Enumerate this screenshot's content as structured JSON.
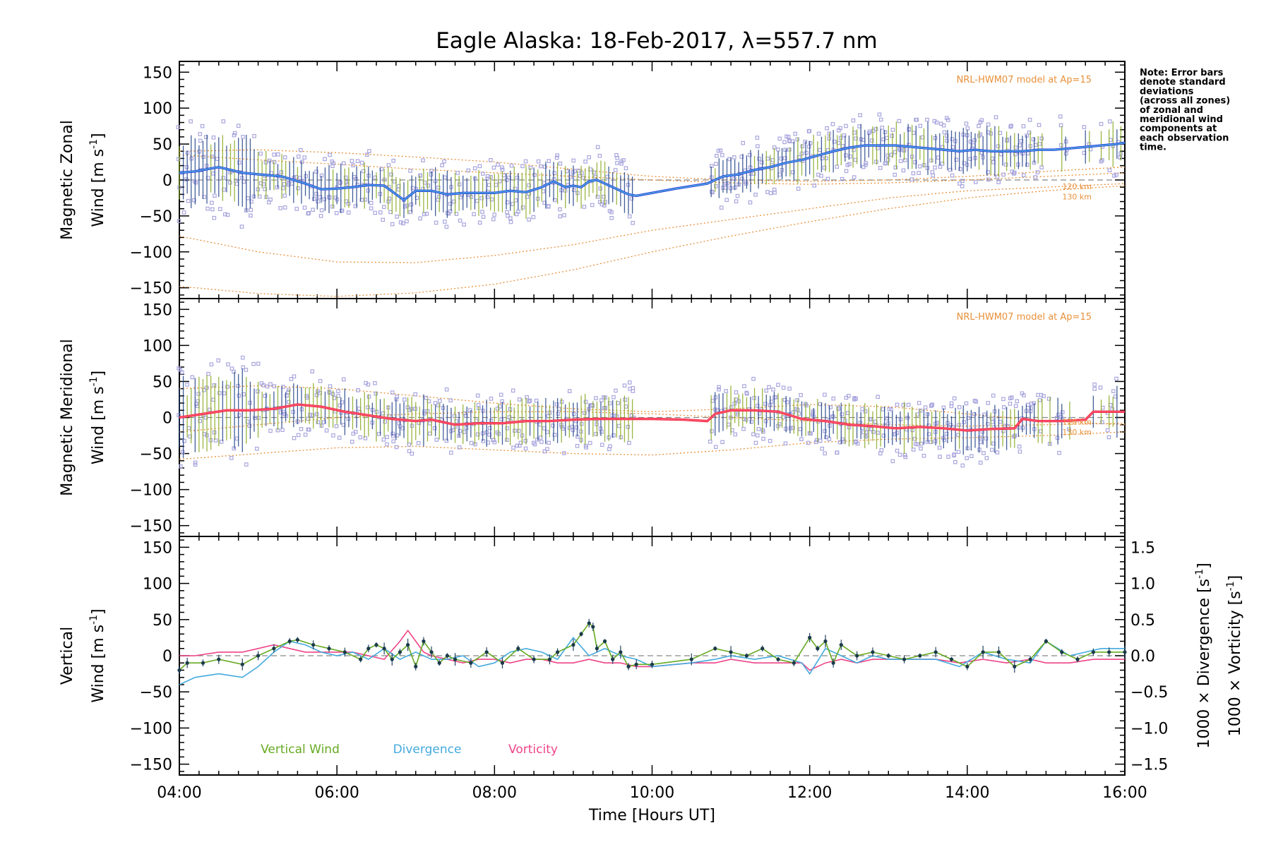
{
  "title": "Eagle Alaska: 18-Feb-2017, λ=557.7 nm",
  "note": [
    "Note: Error bars",
    "denote standard",
    "deviations",
    "(across all zones)",
    "of zonal and",
    "meridional wind",
    "components at",
    "each observation",
    "time."
  ],
  "x_axis": {
    "label": "Time [Hours UT]",
    "range": [
      4,
      16
    ],
    "tick_labels": [
      "04:00",
      "06:00",
      "08:00",
      "10:00",
      "12:00",
      "14:00",
      "16:00"
    ]
  },
  "colors": {
    "zonal": "#2233dd",
    "zonal_light": "#4fa6dd",
    "meridional": "#ee2233",
    "meridional_light": "#ff5577",
    "model": "#e8903a",
    "scatter": "#a9a6de",
    "vertical": "#66aa22",
    "divergence": "#44aadd",
    "vorticity": "#ee4488",
    "errorbar_a": "#224488",
    "errorbar_b": "#88aa22"
  },
  "chart_data": [
    {
      "type": "line",
      "panel": "zonal",
      "ylabel_line1": "Magnetic Zonal",
      "ylabel_line2": "Wind [m s",
      "ylabel_sup": "-1",
      "ylabel_close": "]",
      "ylim": [
        -165,
        165
      ],
      "y_tick_labels": [
        "150",
        "100",
        "50",
        "0",
        "−50",
        "−100",
        "−150"
      ],
      "model_label": "NRL-HWM07 model at Ap=15",
      "model_km_labels": [
        "120 km",
        "130 km"
      ],
      "series": [
        {
          "x": [
            4.0,
            4.2,
            4.5,
            4.8,
            5.0,
            5.3,
            5.6,
            5.8,
            6.0,
            6.2,
            6.4,
            6.6,
            6.75,
            6.85,
            7.0,
            7.2,
            7.4,
            7.6,
            7.8,
            8.0,
            8.2,
            8.4,
            8.6,
            8.75,
            8.9,
            9.0,
            9.1,
            9.2,
            9.3,
            9.4,
            9.5,
            9.6,
            9.7,
            9.8,
            10.0,
            10.3,
            10.7,
            10.9,
            11.1,
            11.3,
            11.5,
            11.7,
            11.9,
            12.1,
            12.3,
            12.5,
            12.7,
            12.9,
            13.1,
            13.3,
            13.5,
            13.7,
            13.9,
            14.1,
            14.3,
            14.5,
            14.7,
            14.9,
            15.1,
            15.3,
            15.5,
            15.7,
            15.9,
            16.0
          ],
          "y": [
            10,
            12,
            18,
            10,
            8,
            5,
            -5,
            -13,
            -12,
            -10,
            -7,
            -8,
            -20,
            -28,
            -15,
            -15,
            -20,
            -18,
            -18,
            -18,
            -15,
            -17,
            -10,
            -2,
            -10,
            -8,
            -10,
            -2,
            0,
            -5,
            -10,
            -15,
            -20,
            -22,
            -18,
            -12,
            -5,
            5,
            8,
            14,
            18,
            24,
            28,
            34,
            40,
            45,
            48,
            48,
            48,
            46,
            44,
            42,
            40,
            42,
            40,
            40,
            40,
            42,
            42,
            44,
            46,
            48,
            50,
            52
          ]
        }
      ],
      "model_curves": [
        {
          "x": [
            4,
            5,
            6,
            7,
            8,
            9,
            10,
            11,
            12,
            13,
            14,
            15,
            16
          ],
          "y": [
            40,
            42,
            38,
            32,
            25,
            15,
            5,
            0,
            -2,
            0,
            5,
            12,
            18
          ]
        },
        {
          "x": [
            4,
            5,
            6,
            7,
            8,
            9,
            10,
            11,
            12,
            13,
            14,
            15,
            16
          ],
          "y": [
            35,
            28,
            22,
            15,
            10,
            5,
            0,
            -4,
            -6,
            -4,
            0,
            5,
            10
          ]
        },
        {
          "x": [
            4,
            5,
            6,
            7,
            8,
            9,
            10,
            11,
            12,
            13,
            14,
            15,
            16
          ],
          "y": [
            -78,
            -100,
            -114,
            -115,
            -105,
            -90,
            -70,
            -55,
            -40,
            -25,
            -15,
            -10,
            -5
          ]
        },
        {
          "x": [
            4,
            5,
            6,
            7,
            8,
            9,
            10,
            11,
            12,
            13,
            14,
            15,
            16
          ],
          "y": [
            -148,
            -158,
            -162,
            -157,
            -145,
            -125,
            -100,
            -78,
            -58,
            -40,
            -25,
            -15,
            -8
          ]
        }
      ]
    },
    {
      "type": "line",
      "panel": "meridional",
      "ylabel_line1": "Magnetic Meridional",
      "ylabel_line2": "Wind [m s",
      "ylabel_sup": "-1",
      "ylabel_close": "]",
      "ylim": [
        -165,
        165
      ],
      "y_tick_labels": [
        "150",
        "100",
        "50",
        "0",
        "−50",
        "−100",
        "−150"
      ],
      "model_label": "NRL-HWM07 model at Ap=15",
      "model_km_labels": [
        "120 km",
        "130 km"
      ],
      "series": [
        {
          "x": [
            4.0,
            4.3,
            4.6,
            4.9,
            5.2,
            5.5,
            5.8,
            6.1,
            6.4,
            6.7,
            7.0,
            7.2,
            7.5,
            7.8,
            8.1,
            8.4,
            8.7,
            9.0,
            9.3,
            9.6,
            10.0,
            10.4,
            10.7,
            10.8,
            11.0,
            11.3,
            11.6,
            11.9,
            12.2,
            12.5,
            12.8,
            13.1,
            13.4,
            13.7,
            14.0,
            14.3,
            14.6,
            14.7,
            14.9,
            15.2,
            15.5,
            15.6,
            16.0
          ],
          "y": [
            0,
            5,
            10,
            10,
            12,
            18,
            15,
            8,
            3,
            -2,
            -5,
            -3,
            -10,
            -8,
            -8,
            -5,
            -5,
            -3,
            -2,
            -2,
            -2,
            -3,
            -5,
            5,
            10,
            10,
            8,
            -2,
            -5,
            -10,
            -12,
            -15,
            -13,
            -15,
            -18,
            -16,
            -15,
            -2,
            -5,
            -5,
            -3,
            8,
            8
          ]
        }
      ],
      "model_curves": [
        {
          "x": [
            4,
            5,
            6,
            7,
            8,
            9,
            10,
            11,
            12,
            13,
            14,
            15,
            16
          ],
          "y": [
            40,
            44,
            40,
            30,
            20,
            12,
            8,
            12,
            18,
            15,
            5,
            -5,
            -10
          ]
        },
        {
          "x": [
            4,
            5,
            6,
            7,
            8,
            9,
            10,
            11,
            12,
            13,
            14,
            15,
            16
          ],
          "y": [
            -20,
            -10,
            0,
            5,
            8,
            8,
            5,
            0,
            -5,
            -10,
            -12,
            -10,
            -8
          ]
        },
        {
          "x": [
            4,
            5,
            6,
            7,
            8,
            9,
            10,
            11,
            12,
            13,
            14,
            15,
            16
          ],
          "y": [
            -58,
            -50,
            -42,
            -40,
            -45,
            -50,
            -52,
            -45,
            -35,
            -30,
            -28,
            -25,
            -20
          ]
        }
      ]
    },
    {
      "type": "line",
      "panel": "vertical",
      "ylabel_line1": "Vertical",
      "ylabel_line2": "Wind [m s",
      "ylabel_sup": "-1",
      "ylabel_close": "]",
      "ylim": [
        -165,
        165
      ],
      "y_tick_labels": [
        "150",
        "100",
        "50",
        "0",
        "−50",
        "−100",
        "−150"
      ],
      "y2lim": [
        -1.65,
        1.65
      ],
      "y2_tick_labels": [
        "1.5",
        "1.0",
        "0.5",
        "0.0",
        "−0.5",
        "−1.0",
        "−1.5"
      ],
      "y2_label_divergence": "1000 × Divergence [s",
      "y2_label_vorticity": "1000 × Vorticity [s",
      "legend": [
        "Vertical Wind",
        "Divergence",
        "Vorticity"
      ],
      "series": [
        {
          "name": "Vertical Wind",
          "x": [
            4.0,
            4.1,
            4.3,
            4.5,
            4.8,
            5.0,
            5.2,
            5.4,
            5.5,
            5.7,
            5.9,
            6.1,
            6.3,
            6.4,
            6.5,
            6.6,
            6.7,
            6.8,
            6.9,
            7.0,
            7.1,
            7.2,
            7.3,
            7.4,
            7.5,
            7.7,
            7.9,
            8.1,
            8.3,
            8.5,
            8.7,
            8.8,
            9.0,
            9.1,
            9.2,
            9.25,
            9.3,
            9.4,
            9.5,
            9.6,
            9.7,
            9.8,
            10.0,
            10.5,
            10.8,
            11.0,
            11.2,
            11.4,
            11.6,
            11.8,
            12.0,
            12.1,
            12.2,
            12.3,
            12.4,
            12.6,
            12.8,
            13.0,
            13.2,
            13.4,
            13.6,
            13.8,
            14.0,
            14.2,
            14.4,
            14.6,
            14.8,
            15.0,
            15.2,
            15.4,
            15.6,
            15.8,
            16.0
          ],
          "y": [
            -20,
            -10,
            -10,
            -5,
            -12,
            0,
            10,
            20,
            22,
            15,
            10,
            5,
            -5,
            10,
            15,
            10,
            -5,
            5,
            15,
            -15,
            20,
            5,
            -10,
            0,
            -5,
            -10,
            5,
            -10,
            10,
            -5,
            -5,
            5,
            15,
            30,
            45,
            40,
            10,
            20,
            -5,
            5,
            -15,
            -12,
            -12,
            -5,
            10,
            5,
            0,
            10,
            -5,
            -10,
            25,
            10,
            20,
            -10,
            15,
            0,
            5,
            0,
            -5,
            0,
            5,
            -5,
            -15,
            5,
            5,
            -15,
            -5,
            20,
            5,
            -5,
            5,
            5,
            5
          ]
        },
        {
          "name": "Divergence",
          "x": [
            4.0,
            4.2,
            4.5,
            4.8,
            5.0,
            5.2,
            5.4,
            5.6,
            5.8,
            6.0,
            6.2,
            6.4,
            6.6,
            6.8,
            7.0,
            7.2,
            7.4,
            7.6,
            7.8,
            8.0,
            8.2,
            8.4,
            8.6,
            8.8,
            9.0,
            9.2,
            9.4,
            9.6,
            9.8,
            10.0,
            10.5,
            10.8,
            11.0,
            11.3,
            11.6,
            11.9,
            12.0,
            12.2,
            12.4,
            12.6,
            12.8,
            13.0,
            13.3,
            13.6,
            13.9,
            14.2,
            14.5,
            14.8,
            15.0,
            15.3,
            15.5,
            15.7,
            16.0
          ],
          "y": [
            -0.4,
            -0.3,
            -0.25,
            -0.3,
            -0.15,
            0.05,
            0.2,
            0.15,
            0.05,
            0.0,
            0.05,
            -0.05,
            0.1,
            -0.05,
            0.05,
            -0.05,
            -0.05,
            0.0,
            -0.15,
            -0.1,
            0.05,
            0.1,
            0.05,
            -0.05,
            0.25,
            0.0,
            0.1,
            0.0,
            -0.05,
            -0.15,
            -0.1,
            -0.05,
            0.0,
            -0.05,
            0.0,
            -0.1,
            -0.25,
            0.1,
            0.0,
            -0.1,
            0.0,
            -0.05,
            -0.05,
            -0.05,
            -0.15,
            0.05,
            -0.05,
            -0.1,
            0.2,
            0.0,
            0.05,
            0.1,
            0.1
          ]
        },
        {
          "name": "Vorticity",
          "x": [
            4.0,
            4.2,
            4.5,
            4.8,
            5.0,
            5.2,
            5.4,
            5.6,
            5.8,
            6.0,
            6.2,
            6.4,
            6.6,
            6.8,
            6.9,
            7.0,
            7.1,
            7.2,
            7.4,
            7.6,
            7.8,
            8.0,
            8.2,
            8.4,
            8.6,
            8.8,
            9.0,
            9.2,
            9.4,
            9.6,
            9.8,
            10.0,
            10.5,
            10.8,
            11.0,
            11.3,
            11.6,
            11.9,
            12.0,
            12.2,
            12.4,
            12.6,
            12.8,
            13.0,
            13.3,
            13.6,
            13.9,
            14.2,
            14.5,
            14.8,
            15.0,
            15.3,
            15.6,
            16.0
          ],
          "y": [
            0.0,
            0.0,
            0.05,
            0.05,
            0.1,
            0.15,
            0.1,
            0.05,
            0.05,
            0.05,
            0.05,
            0.0,
            -0.05,
            0.2,
            0.35,
            0.2,
            0.05,
            0.0,
            -0.05,
            -0.1,
            -0.05,
            -0.05,
            -0.1,
            -0.05,
            -0.05,
            -0.1,
            -0.1,
            -0.05,
            -0.1,
            -0.1,
            -0.15,
            -0.15,
            -0.1,
            -0.1,
            -0.05,
            -0.1,
            -0.1,
            -0.1,
            -0.2,
            -0.1,
            -0.05,
            -0.1,
            -0.05,
            -0.05,
            -0.05,
            -0.05,
            -0.1,
            -0.05,
            -0.1,
            -0.05,
            -0.1,
            -0.1,
            -0.05,
            -0.05
          ]
        }
      ]
    }
  ]
}
